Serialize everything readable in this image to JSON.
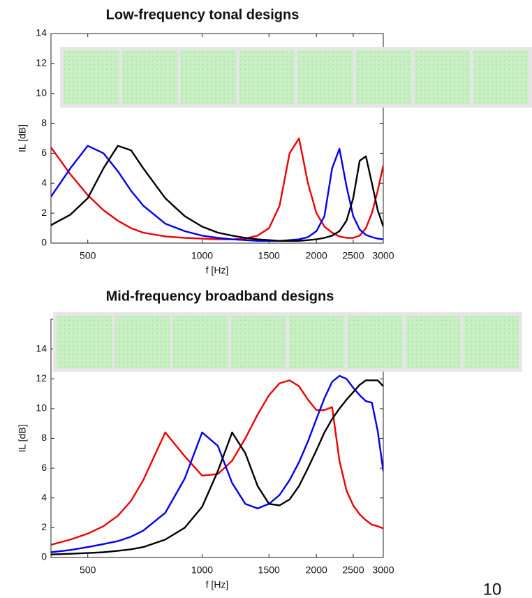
{
  "chart_data": [
    {
      "type": "line",
      "title": "Low-frequency tonal designs",
      "x_label": "f [Hz]",
      "y_label": "IL [dB]",
      "x_scale": "log",
      "xlim": [
        400,
        3000
      ],
      "xticks": [
        500,
        1000,
        1500,
        2000,
        2500,
        3000
      ],
      "ylim": [
        0,
        14
      ],
      "yticks": [
        0,
        2,
        4,
        6,
        8,
        10,
        12,
        14
      ],
      "x": [
        400,
        450,
        500,
        550,
        600,
        650,
        700,
        800,
        900,
        1000,
        1100,
        1200,
        1300,
        1400,
        1500,
        1600,
        1700,
        1800,
        1900,
        2000,
        2100,
        2200,
        2300,
        2400,
        2500,
        2600,
        2700,
        2800,
        2900,
        3000
      ],
      "series": [
        {
          "color": "#ee0000",
          "values": [
            6.4,
            4.6,
            3.2,
            2.2,
            1.5,
            1.0,
            0.7,
            0.45,
            0.35,
            0.3,
            0.25,
            0.25,
            0.3,
            0.5,
            1.0,
            2.5,
            6.0,
            7.0,
            4.0,
            2.0,
            1.1,
            0.7,
            0.45,
            0.35,
            0.35,
            0.5,
            1.0,
            2.0,
            3.5,
            5.2
          ]
        },
        {
          "color": "#0000ee",
          "values": [
            3.1,
            5.0,
            6.5,
            6.0,
            4.8,
            3.5,
            2.5,
            1.3,
            0.8,
            0.5,
            0.35,
            0.25,
            0.2,
            0.15,
            0.15,
            0.15,
            0.2,
            0.25,
            0.4,
            0.8,
            1.8,
            5.0,
            6.3,
            3.8,
            1.8,
            0.9,
            0.55,
            0.4,
            0.3,
            0.25
          ]
        },
        {
          "color": "#000000",
          "values": [
            1.2,
            1.9,
            3.0,
            5.0,
            6.5,
            6.2,
            5.0,
            3.0,
            1.8,
            1.1,
            0.7,
            0.5,
            0.35,
            0.25,
            0.2,
            0.15,
            0.15,
            0.15,
            0.2,
            0.25,
            0.35,
            0.5,
            0.8,
            1.5,
            3.0,
            5.5,
            5.8,
            4.0,
            2.2,
            1.1
          ]
        }
      ]
    },
    {
      "type": "line",
      "title": "Mid-frequency broadband designs",
      "x_label": "f [Hz]",
      "y_label": "IL [dB]",
      "x_scale": "log",
      "xlim": [
        400,
        3000
      ],
      "xticks": [
        500,
        1000,
        1500,
        2000,
        2500,
        3000
      ],
      "ylim": [
        0,
        16
      ],
      "yticks": [
        0,
        2,
        4,
        6,
        8,
        10,
        12,
        14
      ],
      "x": [
        400,
        450,
        500,
        550,
        600,
        650,
        700,
        800,
        900,
        1000,
        1100,
        1200,
        1300,
        1400,
        1500,
        1600,
        1700,
        1800,
        1900,
        2000,
        2100,
        2200,
        2300,
        2400,
        2500,
        2600,
        2700,
        2800,
        2900,
        3000
      ],
      "series": [
        {
          "color": "#ee0000",
          "values": [
            0.85,
            1.2,
            1.6,
            2.1,
            2.8,
            3.8,
            5.2,
            8.4,
            6.8,
            5.5,
            5.6,
            6.5,
            8.0,
            9.6,
            10.9,
            11.7,
            11.9,
            11.5,
            10.6,
            9.9,
            9.9,
            10.1,
            6.5,
            4.5,
            3.5,
            2.9,
            2.5,
            2.2,
            2.1,
            1.95
          ]
        },
        {
          "color": "#0000ee",
          "values": [
            0.35,
            0.5,
            0.7,
            0.9,
            1.1,
            1.4,
            1.8,
            3.0,
            5.3,
            8.4,
            7.5,
            5.0,
            3.6,
            3.3,
            3.6,
            4.2,
            5.2,
            6.4,
            7.8,
            9.3,
            10.7,
            11.8,
            12.2,
            12.0,
            11.4,
            10.9,
            10.5,
            10.4,
            8.5,
            5.8
          ]
        },
        {
          "color": "#000000",
          "values": [
            0.2,
            0.25,
            0.3,
            0.35,
            0.45,
            0.55,
            0.7,
            1.2,
            2.0,
            3.4,
            5.8,
            8.4,
            7.0,
            4.8,
            3.6,
            3.5,
            3.9,
            4.8,
            6.0,
            7.2,
            8.4,
            9.3,
            10.0,
            10.6,
            11.1,
            11.6,
            11.9,
            11.9,
            11.9,
            11.5
          ]
        }
      ]
    }
  ],
  "page_number": "10"
}
